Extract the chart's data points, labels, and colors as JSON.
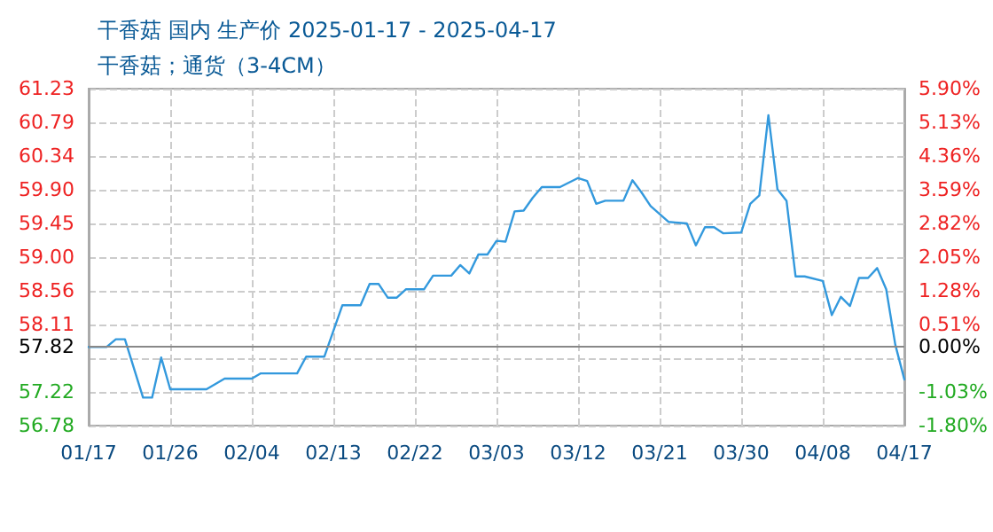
{
  "chart_data": {
    "type": "line",
    "title": "干香菇 国内 生产价 2025-01-17 - 2025-04-17",
    "subtitle": "干香菇；通货（3-4CM）",
    "x": [
      "--01-17",
      "--01-19",
      "--01-20",
      "--01-21",
      "--01-23",
      "--01-24",
      "--01-25",
      "--01-26",
      "--01-30",
      "--02-01",
      "--02-04",
      "--02-05",
      "--02-09",
      "--02-10",
      "--02-12",
      "--02-14",
      "--02-16",
      "--02-17",
      "--02-18",
      "--02-19",
      "--02-20",
      "--02-21",
      "--02-23",
      "--02-24",
      "--02-26",
      "--02-27",
      "--02-28",
      "--03-01",
      "--03-02",
      "--03-03",
      "--03-04",
      "--03-05",
      "--03-06",
      "--03-07",
      "--03-08",
      "--03-10",
      "--03-12",
      "--03-13",
      "--03-14",
      "--03-15",
      "--03-17",
      "--03-18",
      "--03-19",
      "--03-20",
      "--03-22",
      "--03-24",
      "--03-25",
      "--03-26",
      "--03-27",
      "--03-28",
      "--03-30",
      "--03-31",
      "--04-01",
      "--04-02",
      "--04-03",
      "--04-04",
      "--04-05",
      "--04-06",
      "--04-08",
      "--04-09",
      "--04-10",
      "--04-11",
      "--04-12",
      "--04-13",
      "--04-14",
      "--04-15",
      "--04-16",
      "--04-17"
    ],
    "series": [
      {
        "color": "#3399dd",
        "values": [
          57.82,
          57.82,
          57.92,
          57.92,
          57.15,
          57.15,
          57.68,
          57.26,
          57.26,
          57.4,
          57.4,
          57.47,
          57.47,
          57.69,
          57.69,
          58.37,
          58.37,
          58.65,
          58.65,
          58.47,
          58.47,
          58.58,
          58.58,
          58.76,
          58.76,
          58.9,
          58.79,
          59.04,
          59.04,
          59.22,
          59.21,
          59.61,
          59.62,
          59.79,
          59.93,
          59.93,
          60.05,
          60.01,
          59.71,
          59.75,
          59.75,
          60.02,
          59.86,
          59.68,
          59.47,
          59.45,
          59.16,
          59.4,
          59.4,
          59.32,
          59.33,
          59.71,
          59.82,
          60.88,
          59.9,
          59.75,
          58.75,
          58.75,
          58.69,
          58.24,
          58.48,
          58.36,
          58.73,
          58.73,
          58.86,
          58.58,
          57.85,
          57.39
        ]
      }
    ],
    "xlim": [
      "--01-17",
      "--04-17"
    ],
    "xticks": [
      {
        "value": "--01-17",
        "label": "01/17"
      },
      {
        "value": "--01-26",
        "label": "01/26"
      },
      {
        "value": "--02-04",
        "label": "02/04"
      },
      {
        "value": "--02-13",
        "label": "02/13"
      },
      {
        "value": "--02-22",
        "label": "02/22"
      },
      {
        "value": "--03-03",
        "label": "03/03"
      },
      {
        "value": "--03-12",
        "label": "03/12"
      },
      {
        "value": "--03-21",
        "label": "03/21"
      },
      {
        "value": "--03-30",
        "label": "03/30"
      },
      {
        "value": "--04-08",
        "label": "04/08"
      },
      {
        "value": "--04-17",
        "label": "04/17"
      }
    ],
    "ylim": [
      56.78,
      61.23
    ],
    "yticks": [
      {
        "value": 56.78,
        "label": "56.78"
      },
      {
        "value": 57.22,
        "label": "57.22"
      },
      {
        "value": 57.67,
        "label": null
      },
      {
        "value": 57.82,
        "label": "57.82"
      },
      {
        "value": 58.11,
        "label": "58.11"
      },
      {
        "value": 58.56,
        "label": "58.56"
      },
      {
        "value": 59.0,
        "label": "59.00"
      },
      {
        "value": 59.45,
        "label": "59.45"
      },
      {
        "value": 59.9,
        "label": "59.90"
      },
      {
        "value": 60.34,
        "label": "60.34"
      },
      {
        "value": 60.79,
        "label": "60.79"
      },
      {
        "value": 61.23,
        "label": "61.23"
      }
    ],
    "y2lim": [
      -1.8,
      5.9
    ],
    "y2ticks": [
      {
        "value": -1.8,
        "label": "-1.80%"
      },
      {
        "value": -1.03,
        "label": "-1.03%"
      },
      {
        "value": 0,
        "label": "0.00%"
      },
      {
        "value": 0.51,
        "label": "0.51%"
      },
      {
        "value": 1.28,
        "label": "1.28%"
      },
      {
        "value": 2.05,
        "label": "2.05%"
      },
      {
        "value": 2.82,
        "label": "2.82%"
      },
      {
        "value": 3.59,
        "label": "3.59%"
      },
      {
        "value": 4.36,
        "label": "4.36%"
      },
      {
        "value": 5.13,
        "label": "5.13%"
      },
      {
        "value": 5.9,
        "label": "5.90%"
      }
    ],
    "ref_lines": [
      {
        "axis": "y",
        "value": 57.82,
        "color": "#888888"
      }
    ],
    "grid": true,
    "marker": "none",
    "line_style": "solid"
  }
}
